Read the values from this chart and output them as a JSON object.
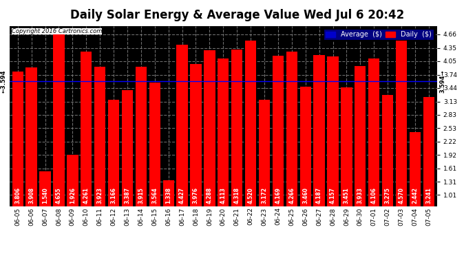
{
  "title": "Daily Solar Energy & Average Value Wed Jul 6 20:42",
  "copyright": "Copyright 2016 Cartronics.com",
  "categories": [
    "06-05",
    "06-06",
    "06-07",
    "06-08",
    "06-09",
    "06-10",
    "06-11",
    "06-12",
    "06-13",
    "06-14",
    "06-15",
    "06-16",
    "06-17",
    "06-18",
    "06-19",
    "06-20",
    "06-21",
    "06-22",
    "06-23",
    "06-24",
    "06-25",
    "06-26",
    "06-27",
    "06-28",
    "06-29",
    "06-30",
    "07-01",
    "07-02",
    "07-03",
    "07-04",
    "07-05"
  ],
  "values": [
    3.806,
    3.908,
    1.54,
    4.655,
    1.926,
    4.261,
    3.923,
    3.166,
    3.387,
    3.915,
    3.564,
    1.338,
    4.427,
    3.976,
    4.288,
    4.113,
    4.318,
    4.52,
    3.172,
    4.169,
    4.266,
    3.46,
    4.187,
    4.157,
    3.451,
    3.933,
    4.106,
    3.275,
    4.57,
    2.442,
    3.241
  ],
  "average": 3.594,
  "bar_color": "#FF0000",
  "avg_line_color": "#0000FF",
  "bg_color": "#000000",
  "plot_bg_color": "#000000",
  "grid_color": "#888888",
  "title_color": "#000000",
  "title_bg": "#FFFFFF",
  "title_fontsize": 12,
  "ylabel_right_values": [
    4.66,
    4.35,
    4.05,
    3.74,
    3.44,
    3.13,
    2.83,
    2.53,
    2.22,
    1.92,
    1.61,
    1.31,
    1.01
  ],
  "ylim": [
    0.75,
    4.85
  ],
  "legend_avg_color": "#0000CC",
  "legend_daily_color": "#FF0000",
  "label_fontsize": 5.5,
  "tick_fontsize": 6.5
}
